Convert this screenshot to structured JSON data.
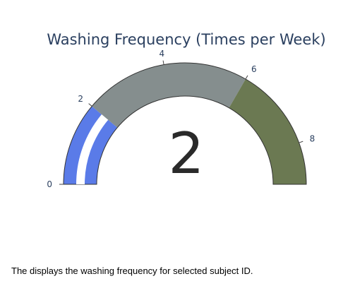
{
  "chart_data": {
    "type": "gauge",
    "title": "Washing Frequency (Times per Week)",
    "value": 2,
    "range": [
      0,
      9
    ],
    "tick_values": [
      0,
      2,
      4,
      6,
      8
    ],
    "tick_labels": [
      "0",
      "2",
      "4",
      "6",
      "8"
    ],
    "steps": [
      {
        "range": [
          0,
          2
        ],
        "color": "#5a7be8"
      },
      {
        "range": [
          2,
          6
        ],
        "color": "#858e8e"
      },
      {
        "range": [
          6,
          9
        ],
        "color": "#6b7952"
      }
    ],
    "bar_color": "#ffffff",
    "border_color": "#333333"
  },
  "caption": "The displays the washing frequency for selected subject ID."
}
